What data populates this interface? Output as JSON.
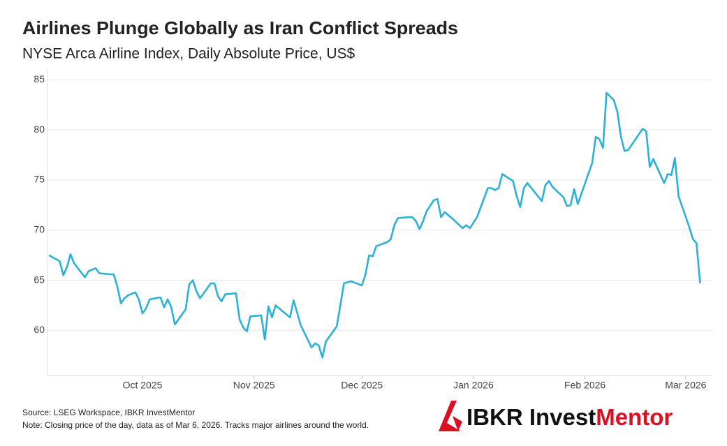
{
  "chart_data": {
    "type": "line",
    "title": "Airlines Plunge Globally as Iran Conflict Spreads",
    "subtitle": "NYSE Arca Airline Index, Daily Absolute Price, US$",
    "source": "Source: LSEG Workspace, IBKR InvestMentor",
    "note": "Note: Closing price of the day, data as of Mar 6, 2026. Tracks major airlines around the world.",
    "xlim": [
      -26.4,
      158.4
    ],
    "xticks": [
      {
        "value": 0,
        "label": "Oct 2025"
      },
      {
        "value": 31,
        "label": "Nov 2025"
      },
      {
        "value": 61,
        "label": "Dec 2025"
      },
      {
        "value": 92,
        "label": "Jan 2026"
      },
      {
        "value": 123,
        "label": "Feb 2026"
      },
      {
        "value": 151,
        "label": "Mar 2026"
      }
    ],
    "ylim": [
      55.5,
      86
    ],
    "yticks": [
      60,
      65,
      70,
      75,
      80,
      85
    ],
    "grid": true,
    "series": [
      {
        "name": "NYSE Arca Airline Index",
        "color": "#2bb1d8",
        "x": [
          -26,
          -23,
          -22,
          -21,
          -20,
          -19,
          -16,
          -15,
          -13,
          -12,
          -9,
          -8,
          -7,
          -6,
          -5,
          -4,
          -2,
          -1,
          0,
          1,
          2,
          5,
          6,
          7,
          8,
          9,
          12,
          13,
          14,
          15,
          16,
          19,
          20,
          21,
          22,
          23,
          26,
          27,
          28,
          29,
          30,
          33,
          34,
          35,
          36,
          37,
          41,
          42,
          44,
          47,
          48,
          49,
          50,
          51,
          54,
          55,
          56,
          58,
          61,
          62,
          63,
          64,
          65,
          68,
          69,
          70,
          71,
          74,
          75,
          76,
          77,
          78,
          79,
          81,
          82,
          83,
          84,
          86,
          89,
          90,
          91,
          93,
          96,
          97,
          98,
          99,
          100,
          103,
          104,
          105,
          106,
          107,
          111,
          112,
          113,
          114,
          117,
          118,
          119,
          120,
          121,
          125,
          126,
          127,
          128,
          129,
          131,
          132,
          133,
          134,
          135,
          139,
          140,
          141,
          142,
          145,
          146,
          147,
          148,
          149,
          152,
          153,
          154,
          155
        ],
        "values": [
          67.5,
          66.9,
          65.5,
          66.3,
          67.6,
          66.7,
          65.3,
          65.9,
          66.2,
          65.7,
          65.6,
          65.6,
          64.4,
          62.7,
          63.2,
          63.5,
          63.8,
          63.1,
          61.7,
          62.2,
          63.1,
          63.3,
          62.3,
          63.1,
          62.3,
          60.6,
          62.1,
          64.6,
          65.0,
          63.9,
          63.2,
          64.7,
          64.7,
          63.4,
          62.9,
          63.6,
          63.7,
          61.1,
          60.3,
          59.9,
          61.4,
          61.5,
          59.1,
          62.4,
          61.3,
          62.5,
          61.3,
          63.0,
          60.5,
          58.3,
          58.7,
          58.5,
          57.3,
          58.9,
          60.4,
          62.5,
          64.7,
          64.9,
          64.5,
          65.6,
          67.5,
          67.4,
          68.4,
          68.8,
          69.1,
          70.5,
          71.2,
          71.3,
          71.3,
          70.9,
          70.1,
          70.9,
          71.9,
          73.0,
          73.1,
          71.3,
          71.8,
          71.2,
          70.2,
          70.5,
          70.2,
          71.3,
          74.2,
          74.2,
          74.0,
          74.2,
          75.6,
          74.9,
          73.4,
          72.3,
          74.2,
          74.7,
          72.9,
          74.5,
          74.9,
          74.3,
          73.3,
          72.4,
          72.5,
          74.1,
          72.6,
          76.7,
          79.3,
          79.1,
          78.2,
          83.7,
          83.0,
          81.8,
          79.3,
          77.9,
          78.0,
          80.1,
          79.9,
          76.3,
          77.1,
          74.7,
          75.6,
          75.5,
          77.2,
          73.4,
          70.3,
          69.1,
          68.7,
          64.7
        ]
      }
    ]
  },
  "logo": {
    "first": "IBKR Invest",
    "second": "Mentor"
  }
}
